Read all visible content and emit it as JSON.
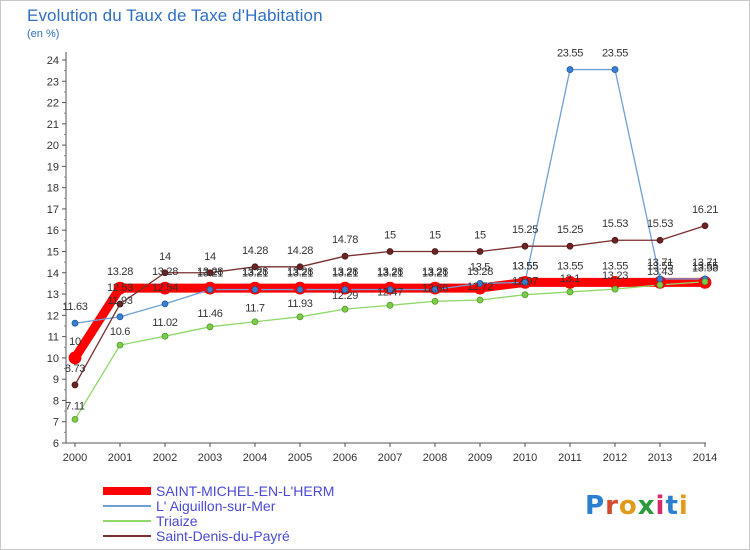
{
  "header": {
    "title": "Evolution du Taux de Taxe d'Habitation",
    "subtitle": "(en %)"
  },
  "logo": {
    "text": "Proxiti"
  },
  "chart_data": {
    "type": "line",
    "title": "Evolution du Taux de Taxe d'Habitation",
    "ylabel": "(en %)",
    "xlabel": "",
    "x": [
      "2000",
      "2001",
      "2002",
      "2003",
      "2004",
      "2005",
      "2006",
      "2007",
      "2008",
      "2009",
      "2010",
      "2011",
      "2012",
      "2013",
      "2014"
    ],
    "ylim": [
      6,
      24
    ],
    "yticks": [
      6,
      7,
      8,
      9,
      10,
      11,
      12,
      13,
      14,
      15,
      16,
      17,
      18,
      19,
      20,
      21,
      22,
      23,
      24
    ],
    "grid": false,
    "legend_position": "bottom-left",
    "series": [
      {
        "name": "SAINT-MICHEL-EN-L'HERM",
        "color": "#ff0000",
        "width": 9,
        "values": [
          10,
          13.28,
          13.28,
          13.28,
          13.28,
          13.28,
          13.28,
          13.28,
          13.28,
          13.28,
          13.55,
          13.55,
          13.55,
          13.55,
          13.55
        ],
        "labels": [
          "10",
          "13.28",
          "13.28",
          "13.28",
          "13.28",
          "13.28",
          "13.28",
          "13.28",
          "13.28",
          "13.28",
          "13.55",
          "13.55",
          "13.55",
          "13.55",
          "13.55"
        ]
      },
      {
        "name": "L' Aiguillon-sur-Mer",
        "color": "#6f9fd6",
        "width": 1.3,
        "values": [
          11.63,
          11.93,
          12.54,
          13.21,
          13.21,
          13.21,
          13.21,
          13.21,
          13.21,
          13.5,
          13.55,
          23.55,
          23.55,
          13.71,
          13.71
        ],
        "labels": [
          "11.63",
          "11.93",
          "12.54",
          "13.21",
          "13.21",
          "13.21",
          "13.21",
          "13.21",
          "13.21",
          "13.5",
          "13.55",
          "23.55",
          "23.55",
          "13.71",
          "13.71"
        ]
      },
      {
        "name": "Triaize",
        "color": "#8fd86a",
        "width": 1.3,
        "values": [
          7.11,
          10.6,
          11.02,
          11.46,
          11.7,
          11.93,
          12.29,
          12.47,
          12.66,
          12.72,
          12.97,
          13.1,
          13.23,
          13.43,
          13.58
        ],
        "labels": [
          "7.11",
          "10.6",
          "11.02",
          "11.46",
          "11.7",
          "11.93",
          "12.29",
          "12.47",
          "12.66",
          "12.72",
          "12.97",
          "13.1",
          "13.23",
          "13.43",
          "13.58"
        ]
      },
      {
        "name": "Saint-Denis-du-Payré",
        "color": "#7a2e2e",
        "width": 1.3,
        "values": [
          8.73,
          12.53,
          14,
          14,
          14.28,
          14.28,
          14.78,
          15,
          15,
          15,
          15.25,
          15.25,
          15.53,
          15.53,
          16.21
        ],
        "labels": [
          "8.73",
          "12.53",
          "14",
          "14",
          "14.28",
          "14.28",
          "14.78",
          "15",
          "15",
          "15",
          "15.25",
          "15.25",
          "15.53",
          "15.53",
          "16.21"
        ]
      }
    ]
  }
}
